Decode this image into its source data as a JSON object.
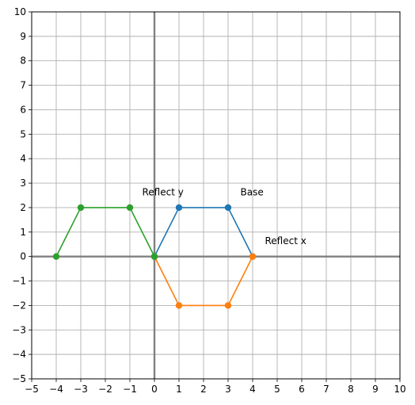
{
  "chart_data": {
    "type": "line",
    "title": "",
    "xlabel": "",
    "ylabel": "",
    "xlim": [
      -5,
      10
    ],
    "ylim": [
      -5,
      10
    ],
    "xticks": [
      "−5",
      "−4",
      "−3",
      "−2",
      "−1",
      "0",
      "1",
      "2",
      "3",
      "4",
      "5",
      "6",
      "7",
      "8",
      "9",
      "10"
    ],
    "yticks": [
      "−5",
      "−4",
      "−3",
      "−2",
      "−1",
      "0",
      "1",
      "2",
      "3",
      "4",
      "5",
      "6",
      "7",
      "8",
      "9",
      "10"
    ],
    "grid": true,
    "legend": false,
    "origin_axes_color": "#808080",
    "grid_color": "#b0b0b0",
    "series": [
      {
        "color": "#1f77b4",
        "points": [
          [
            0,
            0
          ],
          [
            1,
            2
          ],
          [
            3,
            2
          ],
          [
            4,
            0
          ]
        ]
      },
      {
        "color": "#ff7f0e",
        "points": [
          [
            0,
            0
          ],
          [
            1,
            -2
          ],
          [
            3,
            -2
          ],
          [
            4,
            0
          ]
        ]
      },
      {
        "color": "#2ca02c",
        "points": [
          [
            0,
            0
          ],
          [
            -1,
            2
          ],
          [
            -3,
            2
          ],
          [
            -4,
            0
          ]
        ]
      }
    ],
    "annotations": [
      {
        "text": "Base",
        "x": 3.5,
        "y": 2.5
      },
      {
        "text": "Reflect x",
        "x": 4.5,
        "y": 0.5
      },
      {
        "text": "Reflect y",
        "x": -0.5,
        "y": 2.5
      }
    ]
  }
}
